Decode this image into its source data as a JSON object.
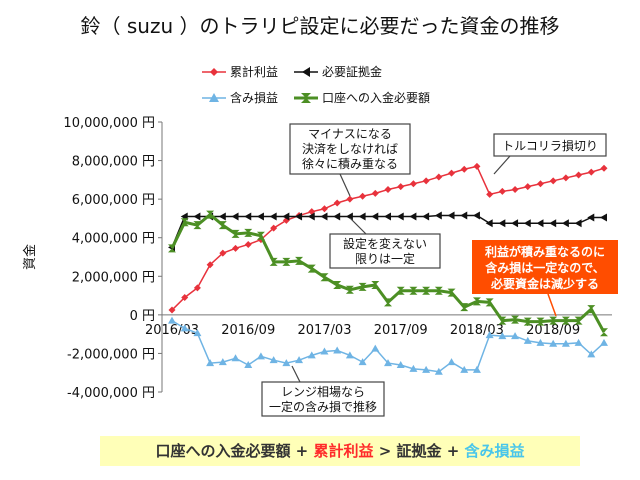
{
  "title": "鈴（ suzu ）のトラリピ設定に必要だった資金の推移",
  "colors": {
    "cumulative": "#e8323c",
    "margin": "#111111",
    "unrealized": "#6fb4e4",
    "required": "#4c8f24",
    "highlight_box": "#ff4d00"
  },
  "chart_data": {
    "type": "line",
    "ylabel": "資金",
    "ylim": [
      -4000000,
      10000000
    ],
    "y_ticks": [
      "10,000,000 円",
      "8,000,000 円",
      "6,000,000 円",
      "4,000,000 円",
      "2,000,000 円",
      "0 円",
      "-2,000,000 円",
      "-4,000,000 円"
    ],
    "y_tick_values": [
      10000000,
      8000000,
      6000000,
      4000000,
      2000000,
      0,
      -2000000,
      -4000000
    ],
    "x_tick_labels": [
      "2016/03",
      "2016/09",
      "2017/03",
      "2017/09",
      "2018/03",
      "2018/09"
    ],
    "x_tick_index": [
      0,
      6,
      12,
      18,
      24,
      30
    ],
    "x_count": 35,
    "legend_placement": "top",
    "series": [
      {
        "name": "累計利益",
        "key": "cumulative",
        "marker": "diamond",
        "values": [
          250000,
          900000,
          1400000,
          2600000,
          3200000,
          3450000,
          3650000,
          3900000,
          4500000,
          4900000,
          5150000,
          5350000,
          5500000,
          5800000,
          6000000,
          6150000,
          6300000,
          6500000,
          6650000,
          6800000,
          6950000,
          7150000,
          7350000,
          7550000,
          7700000,
          6250000,
          6400000,
          6500000,
          6650000,
          6800000,
          6950000,
          7100000,
          7250000,
          7400000,
          7600000
        ]
      },
      {
        "name": "必要証拠金",
        "key": "margin",
        "marker": "arrow",
        "values": [
          3500000,
          5100000,
          5100000,
          5100000,
          5100000,
          5100000,
          5100000,
          5100000,
          5100000,
          5100000,
          5100000,
          5100000,
          5100000,
          5100000,
          5100000,
          5100000,
          5100000,
          5100000,
          5100000,
          5100000,
          5100000,
          5150000,
          5150000,
          5150000,
          5150000,
          4750000,
          4750000,
          4750000,
          4750000,
          4750000,
          4750000,
          4750000,
          4750000,
          5050000,
          5050000
        ]
      },
      {
        "name": "含み損益",
        "key": "unrealized",
        "marker": "triangle",
        "values": [
          -300000,
          -700000,
          -950000,
          -2500000,
          -2450000,
          -2250000,
          -2600000,
          -2150000,
          -2350000,
          -2500000,
          -2350000,
          -2100000,
          -1900000,
          -1850000,
          -2100000,
          -2450000,
          -1750000,
          -2500000,
          -2600000,
          -2800000,
          -2850000,
          -2950000,
          -2450000,
          -2850000,
          -2850000,
          -1050000,
          -1100000,
          -1100000,
          -1350000,
          -1450000,
          -1500000,
          -1500000,
          -1450000,
          -2050000,
          -1450000
        ]
      },
      {
        "name": "口座への入金必要額",
        "key": "required",
        "marker": "hourglass",
        "values": [
          3450000,
          4800000,
          4650000,
          5200000,
          4650000,
          4200000,
          4250000,
          4100000,
          2750000,
          2750000,
          2800000,
          2400000,
          1950000,
          1550000,
          1300000,
          1450000,
          1550000,
          650000,
          1250000,
          1250000,
          1250000,
          1250000,
          1150000,
          400000,
          700000,
          650000,
          -300000,
          -250000,
          -350000,
          -350000,
          -300000,
          -300000,
          -300000,
          300000,
          -900000
        ]
      }
    ],
    "annotations": [
      {
        "id": "minus",
        "lines": [
          "マイナスになる",
          "決済をしなければ",
          "徐々に積み重なる"
        ]
      },
      {
        "id": "tryjpy",
        "lines": [
          "トルコリラ損切り"
        ]
      },
      {
        "id": "setting",
        "lines": [
          "設定を変えない",
          "限りは一定"
        ]
      },
      {
        "id": "range",
        "lines": [
          "レンジ相場なら",
          "一定の含み損で推移"
        ]
      },
      {
        "id": "profit",
        "lines": [
          "利益が積み重なるのに",
          "含み損は一定なので、",
          "必要資金は減少する"
        ]
      }
    ]
  },
  "formula": {
    "part1": "口座への入金必要額",
    "plus1": " + ",
    "part2": "累計利益",
    "gt": " > ",
    "part3": "証拠金",
    "plus2": " + ",
    "part4": "含み損益"
  }
}
